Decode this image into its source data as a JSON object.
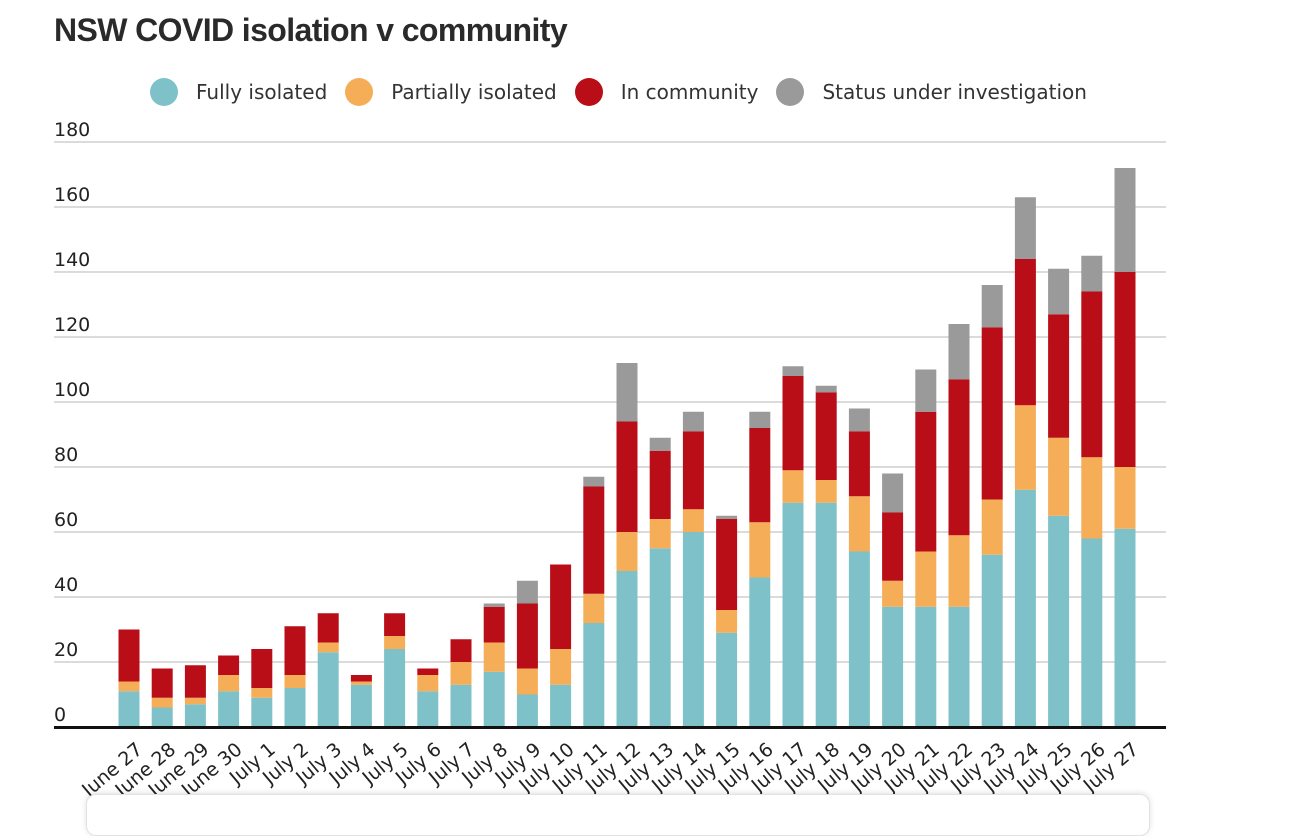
{
  "chart_data": {
    "type": "bar",
    "stacked": true,
    "title": "NSW COVID isolation v community",
    "xlabel": "",
    "ylabel": "",
    "ylim": [
      0,
      180
    ],
    "yticks": [
      0,
      20,
      40,
      60,
      80,
      100,
      120,
      140,
      160,
      180
    ],
    "grid": true,
    "legend_position": "top",
    "categories": [
      "June 27",
      "June 28",
      "June 29",
      "June 30",
      "July 1",
      "July 2",
      "July 3",
      "July 4",
      "July 5",
      "July 6",
      "July 7",
      "July 8",
      "July 9",
      "July 10",
      "July 11",
      "July 12",
      "July 13",
      "July 14",
      "July 15",
      "July 16",
      "July 17",
      "July 18",
      "July 19",
      "July 20",
      "July 21",
      "July 22",
      "July 23",
      "July 24",
      "July 25",
      "July 26",
      "July 27"
    ],
    "series": [
      {
        "name": "Fully isolated",
        "color": "#7fc1c8",
        "values": [
          11,
          6,
          7,
          11,
          9,
          12,
          23,
          13,
          24,
          11,
          13,
          17,
          10,
          13,
          32,
          48,
          55,
          60,
          29,
          46,
          69,
          69,
          54,
          37,
          37,
          37,
          53,
          73,
          65,
          58,
          61
        ]
      },
      {
        "name": "Partially isolated",
        "color": "#f5ad57",
        "values": [
          3,
          3,
          2,
          5,
          3,
          4,
          3,
          1,
          4,
          5,
          7,
          9,
          8,
          11,
          9,
          12,
          9,
          7,
          7,
          17,
          10,
          7,
          17,
          8,
          17,
          22,
          17,
          26,
          24,
          25,
          19
        ]
      },
      {
        "name": "In community",
        "color": "#b90e17",
        "values": [
          16,
          9,
          10,
          6,
          12,
          15,
          9,
          2,
          7,
          2,
          7,
          11,
          20,
          26,
          33,
          34,
          21,
          24,
          28,
          29,
          29,
          27,
          20,
          21,
          43,
          48,
          53,
          45,
          38,
          51,
          60
        ]
      },
      {
        "name": "Status under investigation",
        "color": "#9a9a9a",
        "values": [
          0,
          0,
          0,
          0,
          0,
          0,
          0,
          0,
          0,
          0,
          0,
          1,
          7,
          0,
          3,
          18,
          4,
          6,
          1,
          5,
          3,
          2,
          7,
          12,
          13,
          17,
          13,
          19,
          14,
          11,
          32
        ]
      }
    ]
  }
}
